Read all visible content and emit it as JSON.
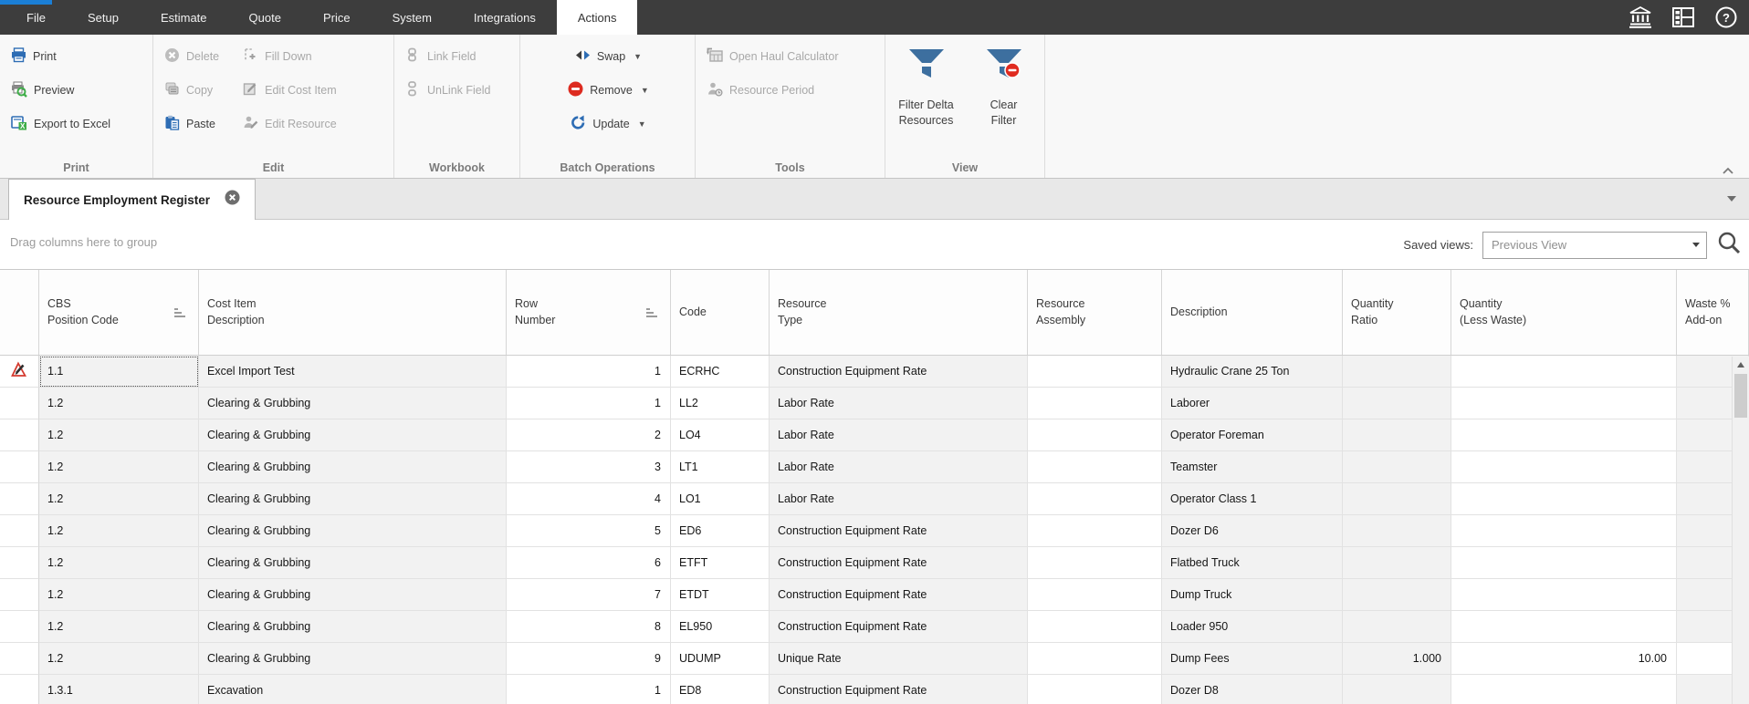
{
  "colors": {
    "accent_blue": "#1b7fd6",
    "funnel_blue": "#3d6f9f",
    "danger_red": "#dd2b20",
    "excel_green": "#3fae49",
    "topbar_bg": "#3d3d3d"
  },
  "menubar": {
    "items": [
      "File",
      "Setup",
      "Estimate",
      "Quote",
      "Price",
      "System",
      "Integrations",
      "Actions"
    ],
    "active_item": "Actions"
  },
  "ribbon": {
    "print_group": {
      "label": "Print",
      "print": "Print",
      "preview": "Preview",
      "export_to_excel": "Export to Excel"
    },
    "edit_group": {
      "label": "Edit",
      "delete": "Delete",
      "copy": "Copy",
      "paste": "Paste",
      "fill_down": "Fill Down",
      "edit_cost_item": "Edit Cost Item",
      "edit_resource": "Edit Resource"
    },
    "workbook_group": {
      "label": "Workbook",
      "link_field": "Link Field",
      "unlink_field": "UnLink Field"
    },
    "batch_group": {
      "label": "Batch Operations",
      "swap": "Swap",
      "remove": "Remove",
      "update": "Update"
    },
    "tools_group": {
      "label": "Tools",
      "open_haul_calculator": "Open Haul Calculator",
      "resource_period": "Resource Period"
    },
    "view_group": {
      "label": "View",
      "filter_delta_resources": "Filter Delta\nResources",
      "clear_filter": "Clear\nFilter"
    }
  },
  "tab": {
    "title": "Resource Employment Register"
  },
  "group_bar": {
    "hint": "Drag columns here to group",
    "saved_views_label": "Saved views:",
    "saved_views_value": "Previous View"
  },
  "grid": {
    "columns": [
      {
        "line1": "CBS",
        "line2": "Position Code",
        "sorted": true
      },
      {
        "line1": "Cost Item",
        "line2": "Description",
        "sorted": false
      },
      {
        "line1": "Row",
        "line2": "Number",
        "sorted": true
      },
      {
        "line1": "Code",
        "line2": "",
        "sorted": false
      },
      {
        "line1": "Resource",
        "line2": "Type",
        "sorted": false
      },
      {
        "line1": "Resource",
        "line2": "Assembly",
        "sorted": false
      },
      {
        "line1": "Description",
        "line2": "",
        "sorted": false
      },
      {
        "line1": "Quantity",
        "line2": "Ratio",
        "sorted": false
      },
      {
        "line1": "Quantity",
        "line2": "(Less Waste)",
        "sorted": false
      },
      {
        "line1": "Waste %",
        "line2": "Add-on",
        "sorted": false
      }
    ],
    "rows": [
      {
        "cbs": "1.1",
        "cost_item": "Excel Import Test",
        "row_number": "1",
        "code": "ECRHC",
        "resource_type": "Construction Equipment Rate",
        "resource_assembly": "",
        "description": "Hydraulic Crane 25 Ton",
        "qty_ratio": "",
        "qty_less_waste": "",
        "waste": "",
        "active": true
      },
      {
        "cbs": "1.2",
        "cost_item": "Clearing & Grubbing",
        "row_number": "1",
        "code": "LL2",
        "resource_type": "Labor Rate",
        "resource_assembly": "",
        "description": "Laborer",
        "qty_ratio": "",
        "qty_less_waste": "",
        "waste": ""
      },
      {
        "cbs": "1.2",
        "cost_item": "Clearing & Grubbing",
        "row_number": "2",
        "code": "LO4",
        "resource_type": "Labor Rate",
        "resource_assembly": "",
        "description": "Operator Foreman",
        "qty_ratio": "",
        "qty_less_waste": "",
        "waste": ""
      },
      {
        "cbs": "1.2",
        "cost_item": "Clearing & Grubbing",
        "row_number": "3",
        "code": "LT1",
        "resource_type": "Labor Rate",
        "resource_assembly": "",
        "description": "Teamster",
        "qty_ratio": "",
        "qty_less_waste": "",
        "waste": ""
      },
      {
        "cbs": "1.2",
        "cost_item": "Clearing & Grubbing",
        "row_number": "4",
        "code": "LO1",
        "resource_type": "Labor Rate",
        "resource_assembly": "",
        "description": "Operator Class 1",
        "qty_ratio": "",
        "qty_less_waste": "",
        "waste": ""
      },
      {
        "cbs": "1.2",
        "cost_item": "Clearing & Grubbing",
        "row_number": "5",
        "code": "ED6",
        "resource_type": "Construction Equipment Rate",
        "resource_assembly": "",
        "description": "Dozer D6",
        "qty_ratio": "",
        "qty_less_waste": "",
        "waste": ""
      },
      {
        "cbs": "1.2",
        "cost_item": "Clearing & Grubbing",
        "row_number": "6",
        "code": "ETFT",
        "resource_type": "Construction Equipment Rate",
        "resource_assembly": "",
        "description": "Flatbed Truck",
        "qty_ratio": "",
        "qty_less_waste": "",
        "waste": ""
      },
      {
        "cbs": "1.2",
        "cost_item": "Clearing & Grubbing",
        "row_number": "7",
        "code": "ETDT",
        "resource_type": "Construction Equipment Rate",
        "resource_assembly": "",
        "description": "Dump Truck",
        "qty_ratio": "",
        "qty_less_waste": "",
        "waste": ""
      },
      {
        "cbs": "1.2",
        "cost_item": "Clearing & Grubbing",
        "row_number": "8",
        "code": "EL950",
        "resource_type": "Construction Equipment Rate",
        "resource_assembly": "",
        "description": "Loader 950",
        "qty_ratio": "",
        "qty_less_waste": "",
        "waste": ""
      },
      {
        "cbs": "1.2",
        "cost_item": "Clearing & Grubbing",
        "row_number": "9",
        "code": "UDUMP",
        "resource_type": "Unique Rate",
        "resource_assembly": "",
        "description": "Dump Fees",
        "qty_ratio": "1.000",
        "qty_less_waste": "10.00",
        "waste": ""
      },
      {
        "cbs": "1.3.1",
        "cost_item": "Excavation",
        "row_number": "1",
        "code": "ED8",
        "resource_type": "Construction Equipment Rate",
        "resource_assembly": "",
        "description": "Dozer D8",
        "qty_ratio": "",
        "qty_less_waste": "",
        "waste": ""
      }
    ]
  }
}
